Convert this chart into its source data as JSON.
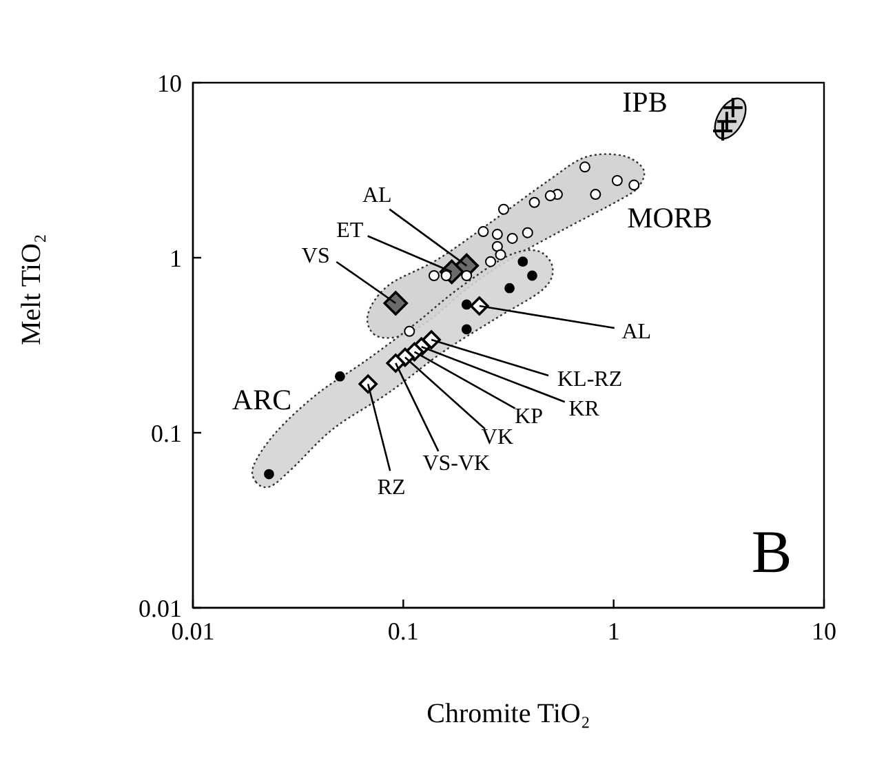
{
  "chart_data": {
    "type": "scatter",
    "xlabel": "Chromite TiO₂",
    "ylabel": "Melt TiO₂",
    "log": "xy",
    "xlim": [
      0.01,
      10
    ],
    "ylim": [
      0.01,
      10
    ],
    "xticks": [
      0.01,
      0.1,
      1,
      10
    ],
    "yticks": [
      0.01,
      0.1,
      1,
      10
    ],
    "series": [
      {
        "marker": "circle",
        "color": "#ffffff",
        "x": [
          0.73,
          1.04,
          1.25,
          0.82,
          0.54,
          0.5,
          0.42,
          0.3,
          0.39,
          0.33,
          0.28,
          0.24,
          0.28,
          0.29,
          0.26,
          0.2,
          0.16,
          0.14,
          0.107
        ],
        "values": [
          3.3,
          2.76,
          2.6,
          2.3,
          2.3,
          2.26,
          2.07,
          1.89,
          1.39,
          1.29,
          1.36,
          1.41,
          1.16,
          1.04,
          0.95,
          0.79,
          0.79,
          0.79,
          0.38
        ]
      },
      {
        "marker": "circle",
        "color": "#000000",
        "x": [
          0.37,
          0.41,
          0.32,
          0.2,
          0.2,
          0.05,
          0.023
        ],
        "values": [
          0.95,
          0.79,
          0.67,
          0.54,
          0.39,
          0.21,
          0.058
        ]
      },
      {
        "marker": "cross",
        "color": "#000000",
        "x": [
          3.69,
          3.45,
          3.3
        ],
        "values": [
          7.2,
          6.0,
          5.3
        ]
      },
      {
        "marker": "diamond",
        "color": "#6b6b6b",
        "x": [
          0.2,
          0.17,
          0.092
        ],
        "values": [
          0.9,
          0.83,
          0.55
        ]
      },
      {
        "marker": "diamond",
        "color": "#ffffff",
        "x": [
          0.23,
          0.136,
          0.122,
          0.113,
          0.102,
          0.092,
          0.068
        ],
        "values": [
          0.53,
          0.34,
          0.31,
          0.29,
          0.27,
          0.25,
          0.19
        ]
      }
    ],
    "annotations": [
      "IPB",
      "MORB",
      "ARC",
      {
        "text": "AL",
        "x": 0.2,
        "y": 0.9
      },
      {
        "text": "ET",
        "x": 0.17,
        "y": 0.83
      },
      {
        "text": "VS",
        "x": 0.092,
        "y": 0.55
      },
      {
        "text": "AL",
        "x": 0.23,
        "y": 0.53
      },
      {
        "text": "KL-RZ",
        "x": 0.136,
        "y": 0.34
      },
      {
        "text": "KR",
        "x": 0.122,
        "y": 0.31
      },
      {
        "text": "KP",
        "x": 0.113,
        "y": 0.29
      },
      {
        "text": "VK",
        "x": 0.102,
        "y": 0.27
      },
      {
        "text": "VS-VK",
        "x": 0.092,
        "y": 0.25
      },
      {
        "text": "RZ",
        "x": 0.068,
        "y": 0.19
      },
      "B"
    ]
  }
}
